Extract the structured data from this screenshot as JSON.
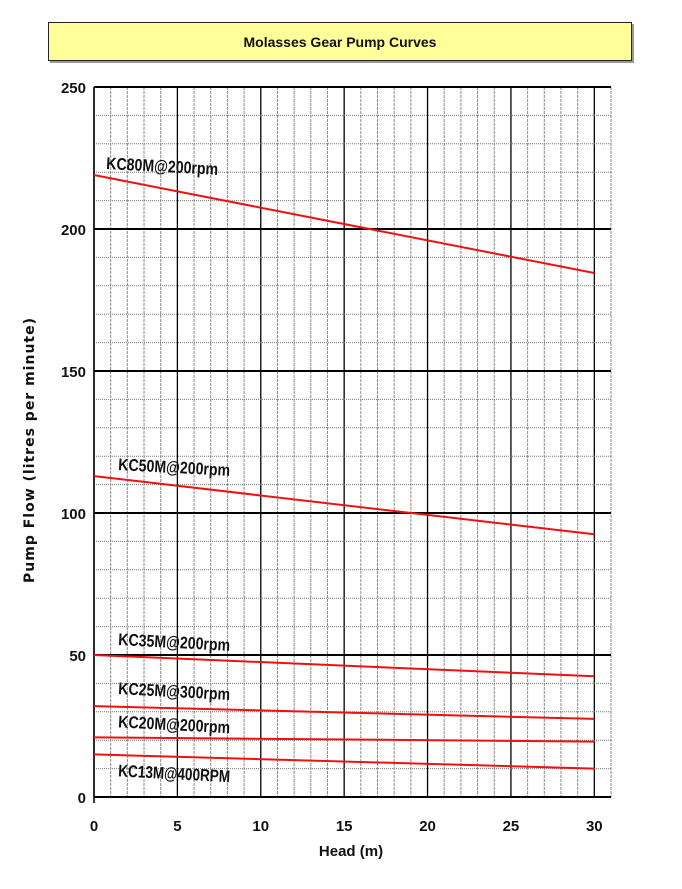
{
  "chart_data": {
    "type": "line",
    "title": "Molasses Gear Pump Curves",
    "xlabel": "Head (m)",
    "ylabel": "Pump Flow (litres per minute)",
    "xlim": [
      0,
      31
    ],
    "ylim": [
      0,
      250
    ],
    "xticks": [
      0,
      5,
      10,
      15,
      20,
      25,
      30
    ],
    "yticks": [
      0,
      50,
      100,
      150,
      200,
      250
    ],
    "grid": true,
    "line_color": "#ee1111",
    "series": [
      {
        "name": "KC80M@200rpm",
        "x": [
          0,
          30
        ],
        "y": [
          219,
          184.5
        ]
      },
      {
        "name": "KC50M@200rpm",
        "x": [
          0,
          30
        ],
        "y": [
          113,
          92.5
        ]
      },
      {
        "name": "KC35M@200rpm",
        "x": [
          0,
          30
        ],
        "y": [
          50,
          42.5
        ]
      },
      {
        "name": "KC25M@300rpm",
        "x": [
          0,
          30
        ],
        "y": [
          32,
          27.5
        ]
      },
      {
        "name": "KC20M@200rpm",
        "x": [
          0,
          30
        ],
        "y": [
          21,
          19.5
        ]
      },
      {
        "name": "KC13M@400RPM",
        "x": [
          0,
          30
        ],
        "y": [
          15,
          10
        ]
      }
    ]
  }
}
